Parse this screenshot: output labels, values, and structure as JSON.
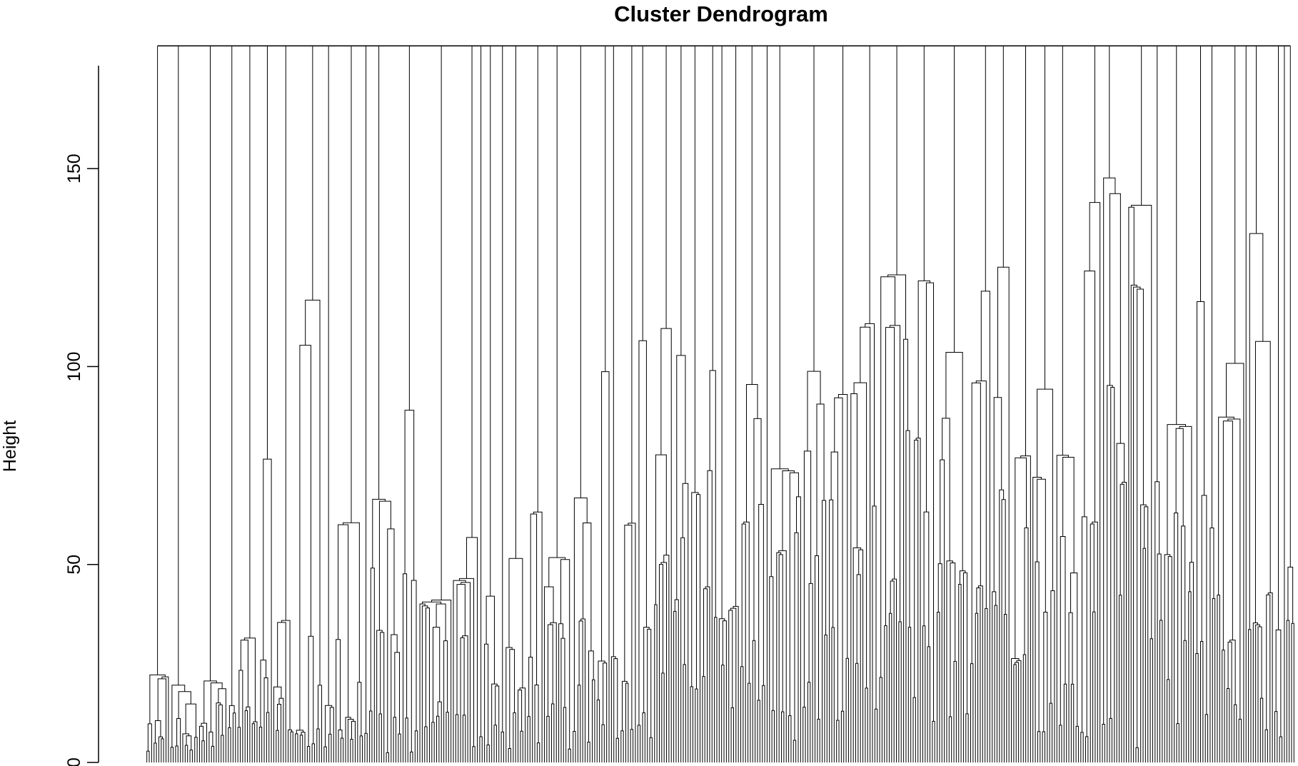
{
  "chart_data": {
    "type": "dendrogram",
    "title": "Cluster Dendrogram",
    "xlabel": "",
    "ylabel": "Height",
    "ylim": [
      0,
      180
    ],
    "y_ticks": [
      0,
      50,
      100,
      150
    ],
    "y_tick_labels": [
      "0",
      "50",
      "100",
      "150"
    ],
    "root_height": 181,
    "n_leaves": 480,
    "merge_height_profile": [
      {
        "leaf_range": [
          0,
          30
        ],
        "typical_heights": [
          2,
          5,
          12,
          28,
          35
        ]
      },
      {
        "leaf_range": [
          30,
          60
        ],
        "typical_heights": [
          4,
          10,
          30,
          98,
          127
        ]
      },
      {
        "leaf_range": [
          60,
          90
        ],
        "typical_heights": [
          3,
          8,
          34,
          117,
          155
        ]
      },
      {
        "leaf_range": [
          90,
          120
        ],
        "typical_heights": [
          2,
          15,
          50,
          116,
          160
        ]
      },
      {
        "leaf_range": [
          120,
          150
        ],
        "typical_heights": [
          2,
          13,
          40,
          72,
          155
        ]
      },
      {
        "leaf_range": [
          150,
          180
        ],
        "typical_heights": [
          3,
          12,
          41,
          74,
          128
        ]
      },
      {
        "leaf_range": [
          180,
          210
        ],
        "typical_heights": [
          4,
          20,
          57,
          121,
          160
        ]
      },
      {
        "leaf_range": [
          210,
          240
        ],
        "typical_heights": [
          3,
          40,
          75,
          118,
          167
        ]
      },
      {
        "leaf_range": [
          240,
          270
        ],
        "typical_heights": [
          2,
          30,
          74,
          103,
          133
        ]
      },
      {
        "leaf_range": [
          270,
          300
        ],
        "typical_heights": [
          3,
          35,
          90,
          110,
          175
        ]
      },
      {
        "leaf_range": [
          300,
          330
        ],
        "typical_heights": [
          5,
          33,
          110,
          150,
          178
        ]
      },
      {
        "leaf_range": [
          330,
          360
        ],
        "typical_heights": [
          8,
          40,
          80,
          131,
          177
        ]
      },
      {
        "leaf_range": [
          360,
          390
        ],
        "typical_heights": [
          5,
          25,
          72,
          97,
          165
        ]
      },
      {
        "leaf_range": [
          390,
          420
        ],
        "typical_heights": [
          3,
          60,
          120,
          160,
          181
        ]
      },
      {
        "leaf_range": [
          420,
          450
        ],
        "typical_heights": [
          4,
          40,
          82,
          128,
          181
        ]
      },
      {
        "leaf_range": [
          450,
          480
        ],
        "typical_heights": [
          6,
          30,
          76,
          152,
          181
        ]
      }
    ],
    "grid": false,
    "legend": "none"
  }
}
